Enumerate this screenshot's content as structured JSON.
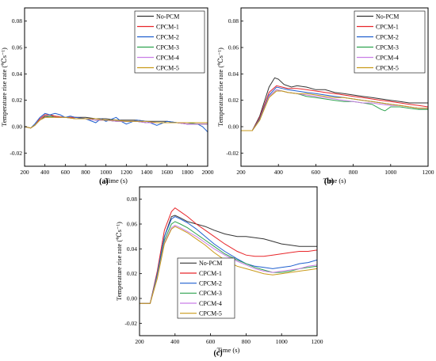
{
  "chart_data": [
    {
      "type": "line",
      "panel_label": "(a)",
      "xlabel": "Time (s)",
      "ylabel_html": "Temperature rise rate (&#8451;s&#8315;&#185;)",
      "xlim": [
        200,
        2000
      ],
      "ylim": [
        -0.03,
        0.09
      ],
      "xticks": [
        200,
        400,
        600,
        800,
        1000,
        1200,
        1400,
        1600,
        1800,
        2000
      ],
      "yticks": [
        -0.02,
        0.0,
        0.02,
        0.04,
        0.06,
        0.08
      ],
      "ytick_labels": [
        "-0.02",
        "0.00",
        "0.02",
        "0.04",
        "0.06",
        "0.08"
      ],
      "legend_position": "top-right",
      "series": [
        {
          "name": "No-PCM",
          "color": "#333333",
          "x": [
            200,
            260,
            300,
            350,
            400,
            450,
            500,
            600,
            700,
            800,
            900,
            1000,
            1100,
            1200,
            1300,
            1400,
            1500,
            1600,
            1700,
            1800,
            1900,
            2000
          ],
          "y": [
            0.0,
            -0.001,
            0.001,
            0.005,
            0.008,
            0.008,
            0.008,
            0.007,
            0.007,
            0.007,
            0.006,
            0.006,
            0.005,
            0.005,
            0.005,
            0.004,
            0.004,
            0.004,
            0.003,
            0.003,
            0.003,
            0.003
          ]
        },
        {
          "name": "CPCM-1",
          "color": "#e8262a",
          "x": [
            200,
            260,
            300,
            350,
            400,
            450,
            500,
            600,
            700,
            800,
            900,
            1000,
            1100,
            1200,
            1300,
            1400,
            1500,
            1600,
            1700,
            1800,
            1900,
            2000
          ],
          "y": [
            0.0,
            -0.001,
            0.001,
            0.006,
            0.009,
            0.009,
            0.008,
            0.007,
            0.007,
            0.006,
            0.005,
            0.005,
            0.004,
            0.004,
            0.004,
            0.003,
            0.003,
            0.003,
            0.003,
            0.002,
            0.002,
            0.002
          ]
        },
        {
          "name": "CPCM-2",
          "color": "#1f5fcf",
          "x": [
            200,
            260,
            300,
            350,
            400,
            450,
            500,
            550,
            600,
            650,
            700,
            800,
            900,
            950,
            1000,
            1100,
            1150,
            1200,
            1300,
            1400,
            1500,
            1600,
            1700,
            1800,
            1900,
            1950,
            2000
          ],
          "y": [
            0.0,
            -0.001,
            0.002,
            0.007,
            0.01,
            0.009,
            0.01,
            0.009,
            0.007,
            0.008,
            0.007,
            0.006,
            0.003,
            0.006,
            0.004,
            0.007,
            0.004,
            0.002,
            0.005,
            0.004,
            0.001,
            0.004,
            0.003,
            0.002,
            0.002,
            0.0,
            -0.004
          ]
        },
        {
          "name": "CPCM-3",
          "color": "#2ea34f",
          "x": [
            200,
            260,
            300,
            350,
            400,
            450,
            500,
            600,
            700,
            800,
            900,
            1000,
            1100,
            1200,
            1300,
            1400,
            1500,
            1600,
            1700,
            1800,
            1900,
            2000
          ],
          "y": [
            0.0,
            -0.001,
            0.001,
            0.005,
            0.007,
            0.008,
            0.007,
            0.007,
            0.006,
            0.006,
            0.005,
            0.005,
            0.004,
            0.004,
            0.004,
            0.003,
            0.003,
            0.003,
            0.003,
            0.003,
            0.002,
            0.002
          ]
        },
        {
          "name": "CPCM-4",
          "color": "#c97ee6",
          "x": [
            200,
            260,
            300,
            350,
            400,
            450,
            500,
            600,
            700,
            800,
            900,
            1000,
            1100,
            1200,
            1300,
            1400,
            1500,
            1600,
            1700,
            1800,
            1900,
            2000
          ],
          "y": [
            0.0,
            -0.001,
            0.001,
            0.005,
            0.007,
            0.007,
            0.007,
            0.007,
            0.006,
            0.006,
            0.005,
            0.005,
            0.004,
            0.004,
            0.004,
            0.003,
            0.003,
            0.003,
            0.003,
            0.002,
            0.002,
            0.002
          ]
        },
        {
          "name": "CPCM-5",
          "color": "#c99a1a",
          "x": [
            200,
            260,
            300,
            350,
            400,
            450,
            500,
            600,
            700,
            800,
            900,
            1000,
            1100,
            1200,
            1300,
            1400,
            1500,
            1600,
            1700,
            1800,
            1900,
            2000
          ],
          "y": [
            0.0,
            -0.001,
            0.001,
            0.005,
            0.007,
            0.007,
            0.007,
            0.007,
            0.006,
            0.006,
            0.006,
            0.005,
            0.005,
            0.004,
            0.004,
            0.004,
            0.003,
            0.003,
            0.003,
            0.003,
            0.003,
            0.003
          ]
        }
      ]
    },
    {
      "type": "line",
      "panel_label": "(b)",
      "xlabel": "Time (s)",
      "ylabel_html": "Temperature rise rate (&#8451;s&#8315;&#185;)",
      "xlim": [
        200,
        1200
      ],
      "ylim": [
        -0.03,
        0.09
      ],
      "xticks": [
        200,
        400,
        600,
        800,
        1000,
        1200
      ],
      "yticks": [
        -0.02,
        0.0,
        0.02,
        0.04,
        0.06,
        0.08
      ],
      "ytick_labels": [
        "-0.02",
        "0.00",
        "0.02",
        "0.04",
        "0.06",
        "0.08"
      ],
      "legend_position": "top-right",
      "series": [
        {
          "name": "No-PCM",
          "color": "#333333",
          "x": [
            200,
            260,
            300,
            350,
            380,
            400,
            430,
            470,
            500,
            550,
            600,
            650,
            700,
            750,
            800,
            850,
            900,
            950,
            1000,
            1050,
            1100,
            1150,
            1200
          ],
          "y": [
            -0.003,
            -0.003,
            0.008,
            0.03,
            0.037,
            0.036,
            0.032,
            0.03,
            0.031,
            0.03,
            0.028,
            0.028,
            0.026,
            0.025,
            0.024,
            0.023,
            0.022,
            0.021,
            0.02,
            0.019,
            0.018,
            0.018,
            0.018
          ]
        },
        {
          "name": "CPCM-1",
          "color": "#e8262a",
          "x": [
            200,
            260,
            300,
            350,
            390,
            420,
            450,
            500,
            550,
            600,
            650,
            700,
            750,
            800,
            850,
            900,
            950,
            1000,
            1050,
            1100,
            1150,
            1200
          ],
          "y": [
            -0.003,
            -0.003,
            0.007,
            0.026,
            0.031,
            0.03,
            0.029,
            0.029,
            0.028,
            0.027,
            0.026,
            0.025,
            0.024,
            0.023,
            0.022,
            0.021,
            0.02,
            0.019,
            0.018,
            0.017,
            0.016,
            0.015
          ]
        },
        {
          "name": "CPCM-2",
          "color": "#1f5fcf",
          "x": [
            200,
            260,
            300,
            350,
            390,
            420,
            450,
            500,
            550,
            600,
            650,
            700,
            750,
            800,
            850,
            900,
            950,
            1000,
            1050,
            1100,
            1150,
            1200
          ],
          "y": [
            -0.003,
            -0.003,
            0.006,
            0.024,
            0.03,
            0.029,
            0.028,
            0.027,
            0.026,
            0.025,
            0.024,
            0.023,
            0.022,
            0.021,
            0.02,
            0.019,
            0.018,
            0.017,
            0.016,
            0.015,
            0.014,
            0.014
          ]
        },
        {
          "name": "CPCM-3",
          "color": "#2ea34f",
          "x": [
            200,
            260,
            300,
            350,
            390,
            420,
            450,
            500,
            550,
            600,
            650,
            700,
            750,
            800,
            850,
            900,
            950,
            970,
            1000,
            1050,
            1100,
            1150,
            1200
          ],
          "y": [
            -0.003,
            -0.003,
            0.005,
            0.023,
            0.028,
            0.027,
            0.026,
            0.025,
            0.023,
            0.022,
            0.021,
            0.02,
            0.019,
            0.019,
            0.018,
            0.017,
            0.013,
            0.012,
            0.015,
            0.015,
            0.014,
            0.013,
            0.013
          ]
        },
        {
          "name": "CPCM-4",
          "color": "#c97ee6",
          "x": [
            200,
            260,
            300,
            350,
            390,
            420,
            450,
            500,
            550,
            600,
            650,
            700,
            750,
            800,
            850,
            900,
            950,
            1000,
            1050,
            1100,
            1150,
            1200
          ],
          "y": [
            -0.003,
            -0.003,
            0.005,
            0.023,
            0.028,
            0.027,
            0.026,
            0.025,
            0.024,
            0.023,
            0.022,
            0.021,
            0.02,
            0.019,
            0.018,
            0.018,
            0.017,
            0.016,
            0.016,
            0.015,
            0.014,
            0.014
          ]
        },
        {
          "name": "CPCM-5",
          "color": "#c99a1a",
          "x": [
            200,
            260,
            300,
            350,
            390,
            420,
            450,
            500,
            550,
            600,
            650,
            700,
            750,
            800,
            850,
            900,
            950,
            1000,
            1050,
            1100,
            1150,
            1200
          ],
          "y": [
            -0.003,
            -0.003,
            0.005,
            0.022,
            0.027,
            0.027,
            0.026,
            0.025,
            0.025,
            0.024,
            0.023,
            0.022,
            0.022,
            0.021,
            0.02,
            0.019,
            0.018,
            0.017,
            0.016,
            0.015,
            0.014,
            0.014
          ]
        }
      ]
    },
    {
      "type": "line",
      "panel_label": "(c)",
      "xlabel": "Time (s)",
      "ylabel_html": "Temperature rise rate (&#8451;s&#8315;&#185;)",
      "xlim": [
        200,
        1200
      ],
      "ylim": [
        -0.03,
        0.09
      ],
      "xticks": [
        200,
        400,
        600,
        800,
        1000,
        1200
      ],
      "yticks": [
        -0.02,
        0.0,
        0.02,
        0.04,
        0.06,
        0.08
      ],
      "ytick_labels": [
        "-0.02",
        "0.00",
        "0.02",
        "0.04",
        "0.06",
        "0.08"
      ],
      "legend_position": "bottom-left",
      "series": [
        {
          "name": "No-PCM",
          "color": "#333333",
          "x": [
            200,
            260,
            300,
            340,
            380,
            400,
            430,
            470,
            520,
            570,
            620,
            680,
            750,
            800,
            850,
            900,
            950,
            1000,
            1050,
            1100,
            1150,
            1200
          ],
          "y": [
            -0.004,
            -0.004,
            0.02,
            0.05,
            0.066,
            0.067,
            0.065,
            0.062,
            0.06,
            0.058,
            0.055,
            0.052,
            0.05,
            0.05,
            0.049,
            0.048,
            0.046,
            0.044,
            0.043,
            0.042,
            0.042,
            0.042
          ]
        },
        {
          "name": "CPCM-1",
          "color": "#e8262a",
          "x": [
            200,
            260,
            300,
            340,
            380,
            400,
            430,
            470,
            520,
            570,
            620,
            680,
            750,
            800,
            850,
            900,
            950,
            1000,
            1050,
            1100,
            1150,
            1200
          ],
          "y": [
            -0.004,
            -0.004,
            0.022,
            0.055,
            0.07,
            0.073,
            0.07,
            0.066,
            0.06,
            0.055,
            0.05,
            0.044,
            0.038,
            0.035,
            0.034,
            0.034,
            0.035,
            0.036,
            0.037,
            0.038,
            0.038,
            0.039
          ]
        },
        {
          "name": "CPCM-2",
          "color": "#1f5fcf",
          "x": [
            200,
            260,
            300,
            340,
            380,
            400,
            430,
            470,
            520,
            570,
            620,
            680,
            750,
            800,
            850,
            900,
            950,
            1000,
            1050,
            1100,
            1150,
            1200
          ],
          "y": [
            -0.004,
            -0.004,
            0.02,
            0.05,
            0.064,
            0.066,
            0.064,
            0.061,
            0.056,
            0.05,
            0.044,
            0.038,
            0.032,
            0.028,
            0.026,
            0.025,
            0.024,
            0.025,
            0.026,
            0.028,
            0.029,
            0.031
          ]
        },
        {
          "name": "CPCM-3",
          "color": "#2ea34f",
          "x": [
            200,
            260,
            300,
            340,
            380,
            400,
            430,
            470,
            520,
            570,
            620,
            680,
            750,
            800,
            850,
            900,
            950,
            1000,
            1050,
            1100,
            1150,
            1200
          ],
          "y": [
            -0.004,
            -0.004,
            0.018,
            0.047,
            0.06,
            0.062,
            0.06,
            0.057,
            0.052,
            0.047,
            0.042,
            0.036,
            0.031,
            0.028,
            0.025,
            0.023,
            0.021,
            0.021,
            0.022,
            0.024,
            0.025,
            0.026
          ]
        },
        {
          "name": "CPCM-4",
          "color": "#c97ee6",
          "x": [
            200,
            260,
            300,
            340,
            380,
            400,
            430,
            470,
            520,
            570,
            620,
            680,
            750,
            800,
            850,
            900,
            950,
            1000,
            1050,
            1100,
            1150,
            1200
          ],
          "y": [
            -0.004,
            -0.004,
            0.017,
            0.045,
            0.057,
            0.059,
            0.057,
            0.054,
            0.05,
            0.045,
            0.04,
            0.035,
            0.03,
            0.027,
            0.024,
            0.022,
            0.021,
            0.022,
            0.023,
            0.024,
            0.026,
            0.027
          ]
        },
        {
          "name": "CPCM-5",
          "color": "#c99a1a",
          "x": [
            200,
            260,
            300,
            340,
            380,
            400,
            430,
            470,
            520,
            570,
            620,
            680,
            750,
            800,
            850,
            900,
            950,
            1000,
            1050,
            1100,
            1150,
            1200
          ],
          "y": [
            -0.004,
            -0.004,
            0.016,
            0.044,
            0.056,
            0.058,
            0.056,
            0.053,
            0.048,
            0.043,
            0.037,
            0.031,
            0.026,
            0.024,
            0.022,
            0.02,
            0.019,
            0.02,
            0.021,
            0.022,
            0.023,
            0.024
          ]
        }
      ]
    }
  ]
}
